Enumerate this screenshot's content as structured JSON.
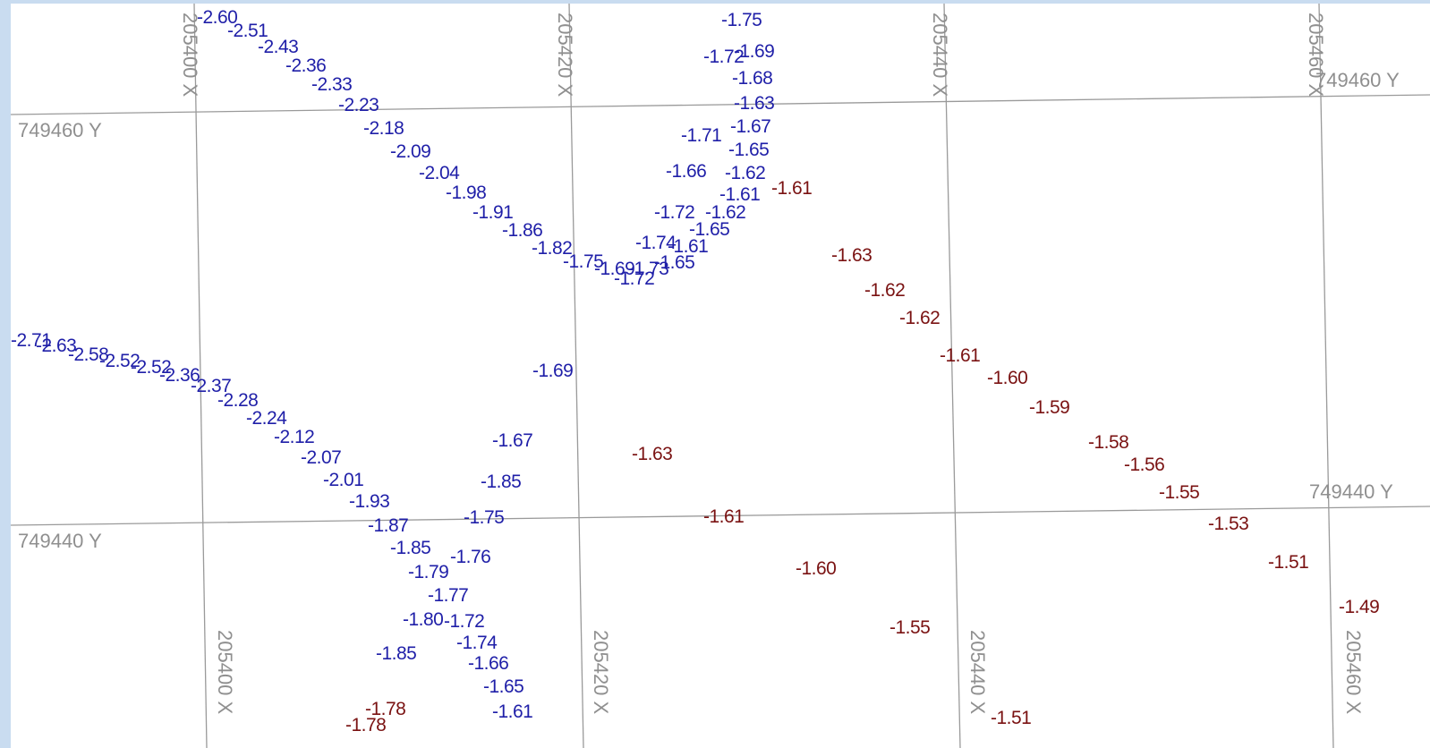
{
  "colors": {
    "background": "#ffffff",
    "frame": "#c9dcf0",
    "grid": "#9a9a9a",
    "grid_label": "#8f8f8f",
    "blue": "#1f1fa8",
    "red": "#7a1212"
  },
  "grid": {
    "x_values": [
      "205400 X",
      "205420 X",
      "205440 X",
      "205460 X"
    ],
    "y_values": [
      "749460 Y",
      "749440 Y"
    ]
  },
  "blue_points": [
    "-2.60",
    "-2.51",
    "-2.43",
    "-2.36",
    "-2.33",
    "-2.23",
    "-2.18",
    "-2.09",
    "-2.04",
    "-1.98",
    "-1.91",
    "-1.86",
    "-1.82",
    "-1.75",
    "-1.69",
    "-1.73",
    "-1.72",
    "-1.65",
    "-1.74",
    "-1.61",
    "-1.65",
    "-1.72",
    "-1.62",
    "-1.66",
    "-1.62",
    "-1.61",
    "-1.71",
    "-1.67",
    "-1.65",
    "-1.63",
    "-1.68",
    "-1.72",
    "-1.69",
    "-1.75",
    "-2.71",
    "-2.63",
    "-2.58",
    "-2.52",
    "-2.52",
    "-2.36",
    "-2.37",
    "-2.28",
    "-2.24",
    "-2.12",
    "-2.07",
    "-2.01",
    "-1.93",
    "-1.87",
    "-1.85",
    "-1.79",
    "-1.77",
    "-1.80",
    "-1.72",
    "-1.74",
    "-1.66",
    "-1.65",
    "-1.61",
    "-1.85",
    "-1.76",
    "-1.75",
    "-1.85",
    "-1.67",
    "-1.69"
  ],
  "red_points": [
    "-1.61",
    "-1.63",
    "-1.62",
    "-1.62",
    "-1.61",
    "-1.60",
    "-1.59",
    "-1.58",
    "-1.56",
    "-1.55",
    "-1.53",
    "-1.51",
    "-1.49",
    "-1.63",
    "-1.61",
    "-1.60",
    "-1.55",
    "-1.51",
    "-1.78",
    "-1.78"
  ]
}
